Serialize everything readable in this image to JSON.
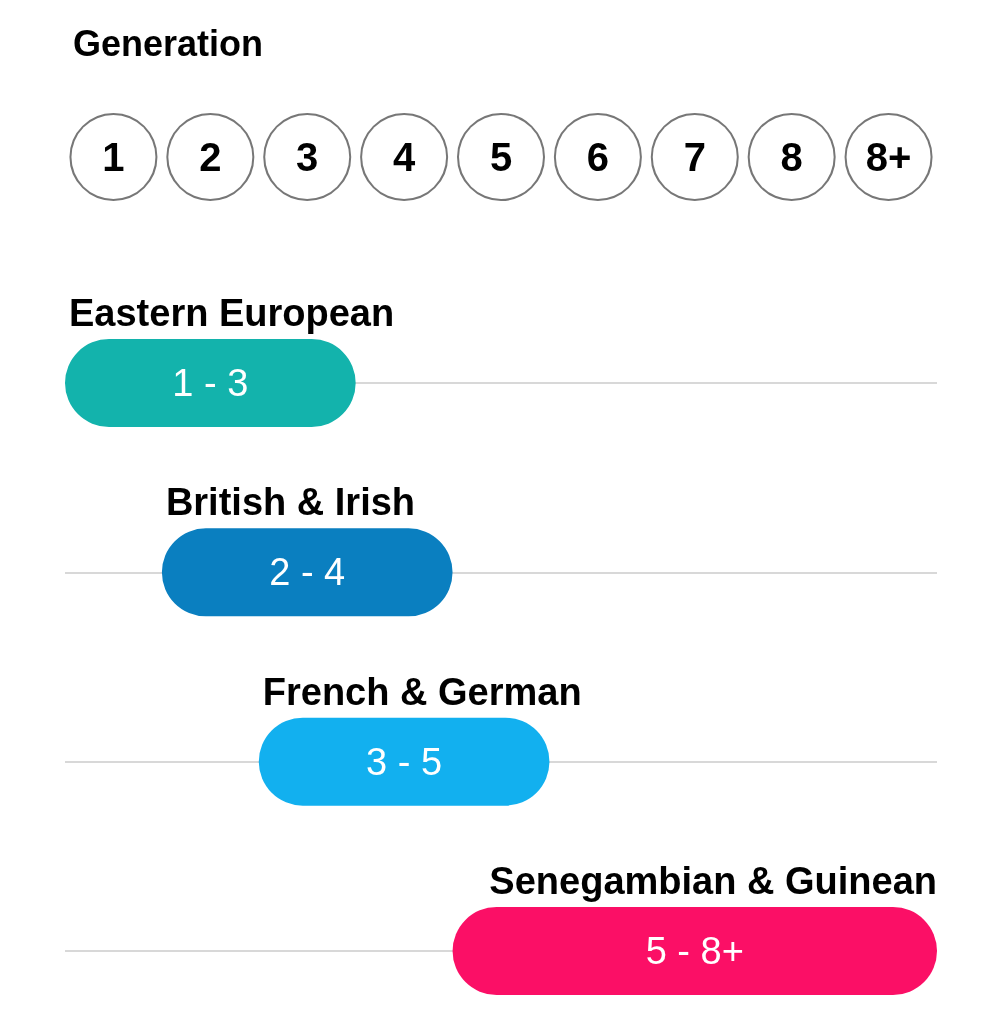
{
  "chart_data": {
    "type": "bar",
    "orientation": "horizontal",
    "title": "Generation",
    "categories": [
      "Eastern European",
      "British & Irish",
      "French & German",
      "Senegambian & Guinean"
    ],
    "base": [
      0.5,
      1.5,
      2.5,
      4.5
    ],
    "values": [
      3,
      3,
      3,
      5
    ],
    "annotations": [
      "1 - 3",
      "2 - 4",
      "3 - 5",
      "5 - 8+"
    ],
    "colors": [
      "#13b3ac",
      "#0a7fc0",
      "#12b0ef",
      "#fb0f66"
    ],
    "xlim": [
      0.5,
      9.5
    ],
    "xticks": [
      1,
      2,
      3,
      4,
      5,
      6,
      7,
      8,
      {
        "value": 9,
        "label": "8+"
      }
    ],
    "grid": "y"
  }
}
